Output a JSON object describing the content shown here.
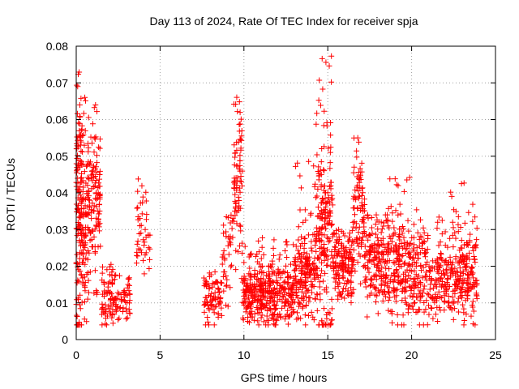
{
  "chart_data": {
    "type": "scatter",
    "title": "Day 113 of 2024, Rate Of TEC Index for receiver spja",
    "xlabel": "GPS time / hours",
    "ylabel": "ROTI / TECUs",
    "xlim": [
      0,
      25
    ],
    "ylim": [
      0,
      0.08
    ],
    "xticks": [
      0,
      5,
      10,
      15,
      20,
      25
    ],
    "xtick_labels": [
      "0",
      "5",
      "10",
      "15",
      "20",
      "25"
    ],
    "yticks": [
      0,
      0.01,
      0.02,
      0.03,
      0.04,
      0.05,
      0.06,
      0.07,
      0.08
    ],
    "ytick_labels": [
      "0",
      "0.01",
      "0.02",
      "0.03",
      "0.04",
      "0.05",
      "0.06",
      "0.07",
      "0.08"
    ],
    "grid": true,
    "marker": "+",
    "color": "#ff0000",
    "clusters": [
      {
        "x": [
          0.0,
          0.35
        ],
        "y_center": 0.032,
        "y_spread": 0.016,
        "y_max": 0.073,
        "n": 140
      },
      {
        "x": [
          0.35,
          0.75
        ],
        "y_center": 0.03,
        "y_spread": 0.014,
        "y_max": 0.068,
        "n": 90
      },
      {
        "x": [
          0.75,
          1.45
        ],
        "y_center": 0.036,
        "y_spread": 0.01,
        "y_max": 0.065,
        "n": 110
      },
      {
        "x": [
          1.5,
          2.2
        ],
        "y_center": 0.012,
        "y_spread": 0.004,
        "y_max": 0.025,
        "n": 60
      },
      {
        "x": [
          2.2,
          3.3
        ],
        "y_center": 0.01,
        "y_spread": 0.003,
        "y_max": 0.018,
        "n": 60
      },
      {
        "x": [
          3.6,
          4.4
        ],
        "y_center": 0.028,
        "y_spread": 0.006,
        "y_max": 0.047,
        "n": 45
      },
      {
        "x": [
          7.6,
          8.7
        ],
        "y_center": 0.011,
        "y_spread": 0.003,
        "y_max": 0.019,
        "n": 80
      },
      {
        "x": [
          8.7,
          9.4
        ],
        "y_center": 0.022,
        "y_spread": 0.006,
        "y_max": 0.039,
        "n": 40
      },
      {
        "x": [
          9.4,
          9.9
        ],
        "y_center": 0.04,
        "y_spread": 0.012,
        "y_max": 0.067,
        "n": 80
      },
      {
        "x": [
          9.9,
          13.0
        ],
        "y_center": 0.012,
        "y_spread": 0.004,
        "y_max": 0.028,
        "n": 380
      },
      {
        "x": [
          13.0,
          14.3
        ],
        "y_center": 0.018,
        "y_spread": 0.006,
        "y_max": 0.049,
        "n": 180
      },
      {
        "x": [
          14.3,
          15.3
        ],
        "y_center": 0.03,
        "y_spread": 0.014,
        "y_max": 0.08,
        "n": 200
      },
      {
        "x": [
          15.3,
          16.5
        ],
        "y_center": 0.02,
        "y_spread": 0.005,
        "y_max": 0.03,
        "n": 150
      },
      {
        "x": [
          16.5,
          17.2
        ],
        "y_center": 0.033,
        "y_spread": 0.009,
        "y_max": 0.055,
        "n": 90
      },
      {
        "x": [
          17.2,
          18.6
        ],
        "y_center": 0.022,
        "y_spread": 0.006,
        "y_max": 0.034,
        "n": 170
      },
      {
        "x": [
          18.6,
          19.6
        ],
        "y_center": 0.02,
        "y_spread": 0.008,
        "y_max": 0.046,
        "n": 130
      },
      {
        "x": [
          19.6,
          21.0
        ],
        "y_center": 0.018,
        "y_spread": 0.006,
        "y_max": 0.046,
        "n": 150
      },
      {
        "x": [
          21.0,
          22.3
        ],
        "y_center": 0.016,
        "y_spread": 0.005,
        "y_max": 0.034,
        "n": 120
      },
      {
        "x": [
          22.3,
          23.9
        ],
        "y_center": 0.017,
        "y_spread": 0.006,
        "y_max": 0.043,
        "n": 200
      }
    ]
  }
}
